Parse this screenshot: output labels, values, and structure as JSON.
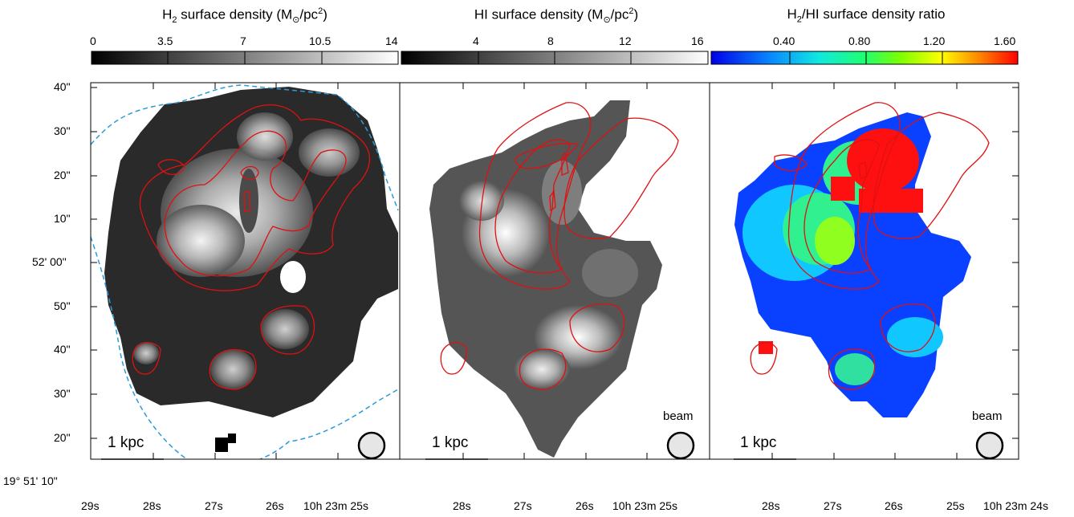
{
  "panels": [
    {
      "id": "h2",
      "colorbar": {
        "title_prefix": "H",
        "title_sub": "2",
        "title_suffix": " surface density (M",
        "title_sun": "⊙",
        "title_end": "/pc",
        "title_sup": "2",
        "title_close": ")",
        "ticks": [
          "0",
          "3.5",
          "7",
          "10.5",
          "14"
        ],
        "colormap": "grayscale"
      },
      "scalebar_label": "1 kpc",
      "beam_label": ""
    },
    {
      "id": "hi",
      "colorbar": {
        "title_prefix": "HI surface density (M",
        "title_sun": "⊙",
        "title_end": "/pc",
        "title_sup": "2",
        "title_close": ")",
        "ticks": [
          "4",
          "8",
          "12",
          "16"
        ],
        "colormap": "grayscale"
      },
      "scalebar_label": "1 kpc",
      "beam_label": "beam"
    },
    {
      "id": "ratio",
      "colorbar": {
        "title_prefix": "H",
        "title_sub": "2",
        "title_suffix": "/HI surface density ratio",
        "ticks": [
          "0.40",
          "0.80",
          "1.20",
          "1.60"
        ],
        "colormap": "jet"
      },
      "scalebar_label": "1 kpc",
      "beam_label": "beam"
    }
  ],
  "axes": {
    "dec_labels": [
      "40\"",
      "30\"",
      "20\"",
      "10\"",
      "52' 00\"",
      "50\"",
      "40\"",
      "30\"",
      "20\"",
      "19° 51' 10\""
    ],
    "ra_labels_panel1": [
      "29s",
      "28s",
      "27s",
      "26s",
      "10h 23m 25s"
    ],
    "ra_labels_panel2": [
      "28s",
      "27s",
      "26s",
      "10h 23m 25s"
    ],
    "ra_labels_panel3": [
      "28s",
      "27s",
      "26s",
      "25s",
      "10h 23m 24s"
    ]
  },
  "colors": {
    "contour": "#e01010",
    "footprint": "#2a9bd8",
    "beam_fill": "#e6e6e6"
  }
}
